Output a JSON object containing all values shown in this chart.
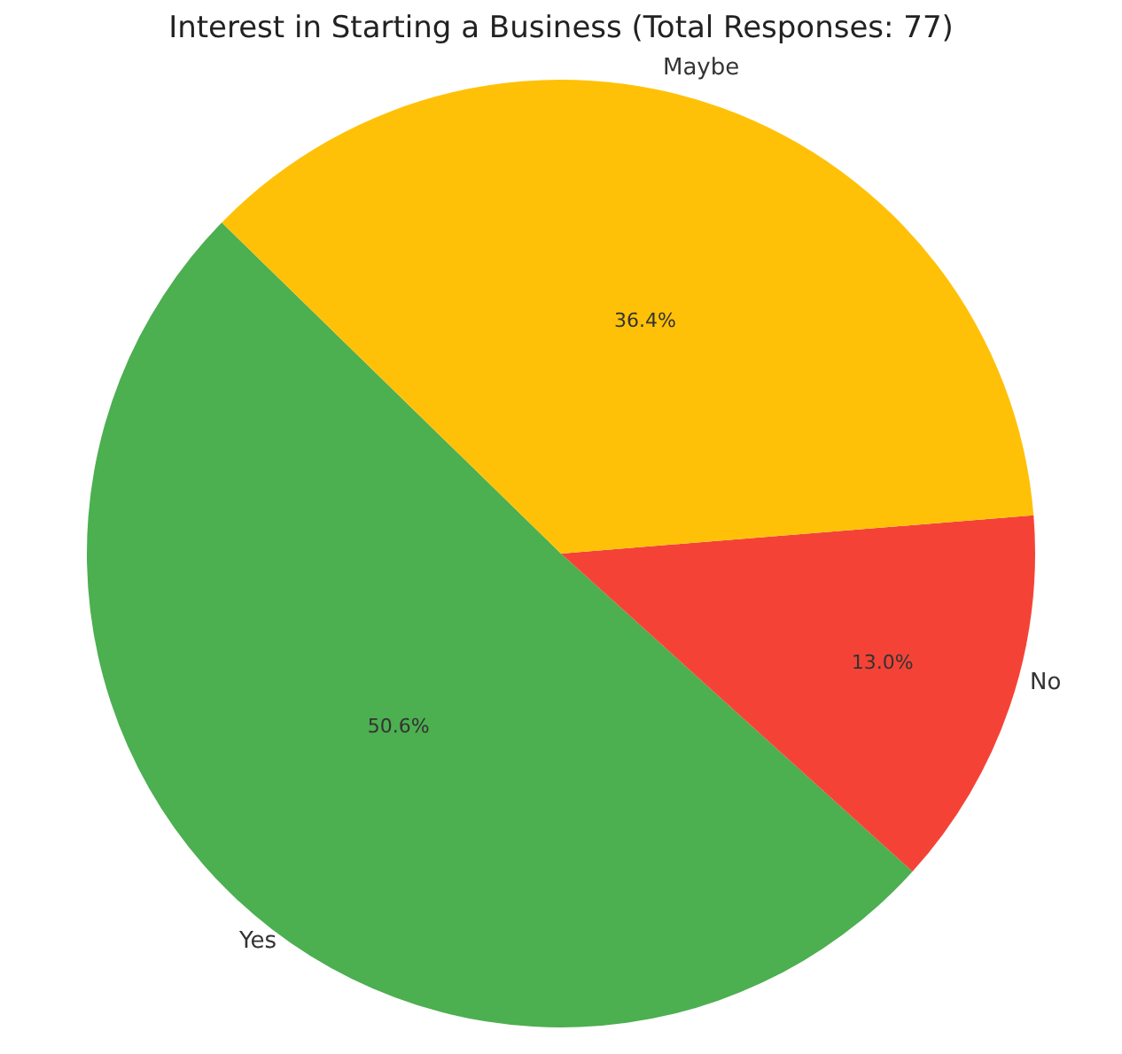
{
  "chart_data": {
    "type": "pie",
    "title": "Interest in Starting a Business (Total Responses: 77)",
    "categories": [
      "Yes",
      "No",
      "Maybe"
    ],
    "values": [
      50.6,
      13.0,
      36.4
    ],
    "colors": [
      "#4caf50",
      "#f44336",
      "#ffc107"
    ],
    "value_labels": [
      "50.6%",
      "13.0%",
      "36.4%"
    ],
    "legend": false
  }
}
